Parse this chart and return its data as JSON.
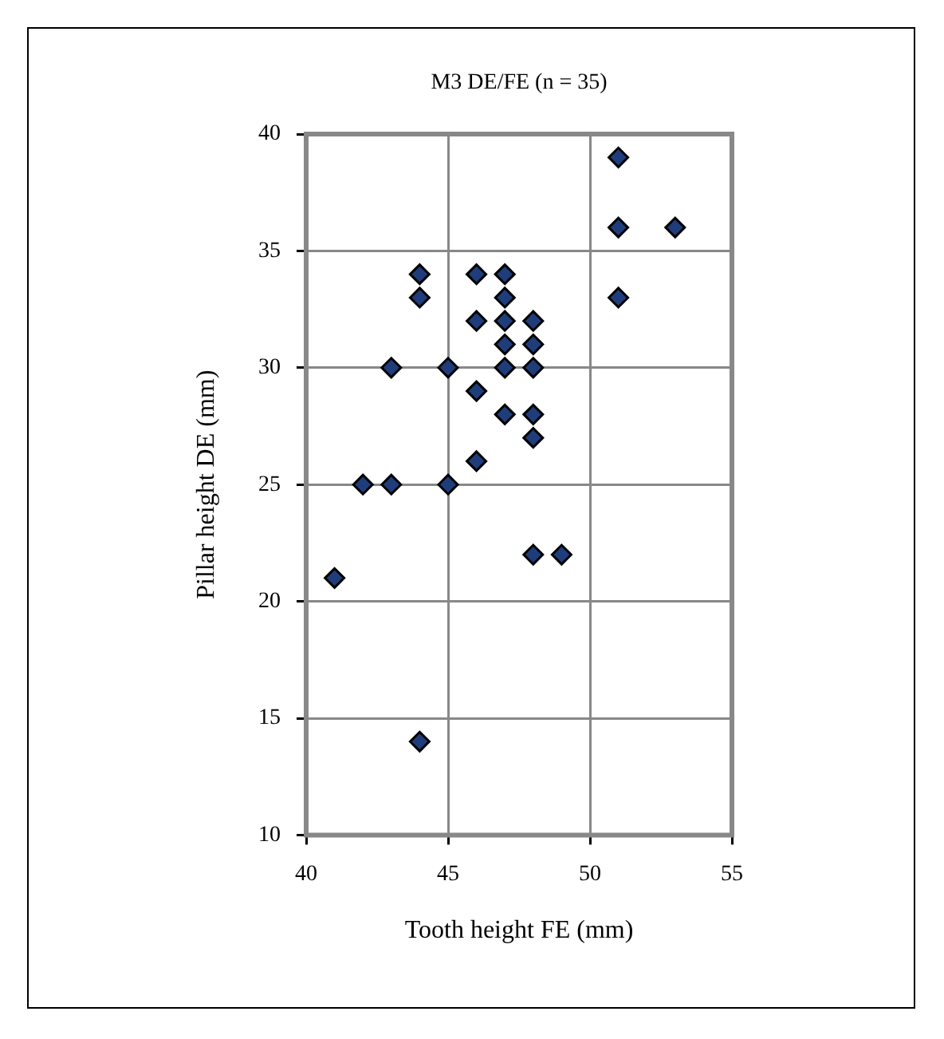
{
  "chart_data": {
    "type": "scatter",
    "title": "M3 DE/FE (n = 35)",
    "xlabel": "Tooth height FE (mm)",
    "ylabel": "Pillar height DE (mm)",
    "xlim": [
      40,
      55
    ],
    "xticks": [
      40,
      45,
      50,
      55
    ],
    "ylim": [
      10,
      40
    ],
    "yticks": [
      10,
      15,
      20,
      25,
      30,
      35,
      40
    ],
    "grid": true,
    "legend": false,
    "marker": "diamond",
    "series": [
      {
        "color": "#1f3d7a",
        "x": [
          51,
          51,
          53,
          44,
          44,
          46,
          47,
          47,
          51,
          46,
          47,
          48,
          47,
          48,
          43,
          45,
          47,
          48,
          46,
          47,
          48,
          48,
          46,
          42,
          43,
          45,
          48,
          49,
          41,
          44
        ],
        "values": [
          39,
          36,
          36,
          34,
          33,
          34,
          34,
          33,
          33,
          32,
          32,
          32,
          31,
          31,
          30,
          30,
          30,
          30,
          29,
          28,
          28,
          27,
          26,
          25,
          25,
          25,
          22,
          22,
          21,
          14
        ]
      }
    ]
  }
}
